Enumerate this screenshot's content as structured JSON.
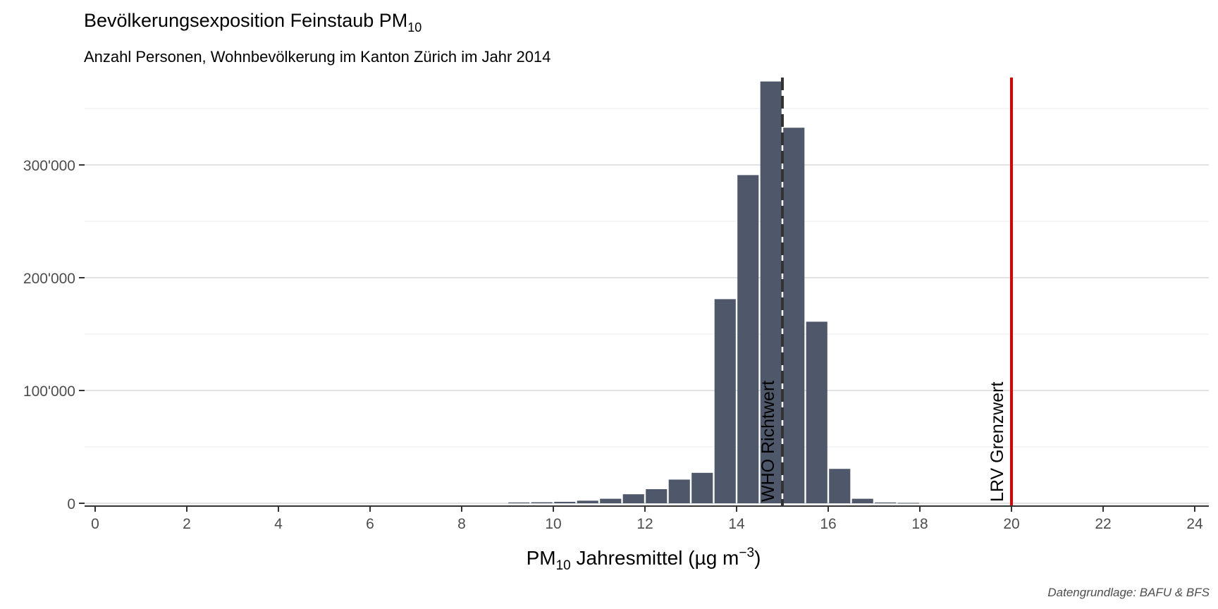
{
  "chart_data": {
    "type": "bar",
    "title": "Bevölkerungsexposition Feinstaub PM",
    "title_subscript": "10",
    "subtitle": "Anzahl Personen, Wohnbevölkerung im Kanton Zürich im Jahr 2014",
    "xlabel_prefix": "PM",
    "xlabel_subscript": "10",
    "xlabel_main": " Jahresmittel (µg m",
    "xlabel_superscript": "−3",
    "xlabel_suffix": ")",
    "ylabel": "",
    "caption": "Datengrundlage: BAFU & BFS",
    "xlim": [
      -0.25,
      24.25
    ],
    "ylim": [
      0,
      375000
    ],
    "x_ticks": [
      0,
      2,
      4,
      6,
      8,
      10,
      12,
      14,
      16,
      18,
      20,
      22,
      24
    ],
    "x_tick_labels": [
      "0",
      "2",
      "4",
      "6",
      "8",
      "10",
      "12",
      "14",
      "16",
      "18",
      "20",
      "22",
      "24"
    ],
    "y_ticks": [
      0,
      100000,
      200000,
      300000
    ],
    "y_tick_labels": [
      "0",
      "100'000",
      "200'000",
      "300'000"
    ],
    "y_minor_ticks": [
      50000,
      150000,
      250000,
      350000
    ],
    "grid": true,
    "bar_color": "#4f586a",
    "bin_width": 0.5,
    "bins": [
      {
        "x": 9.25,
        "value": 700
      },
      {
        "x": 9.75,
        "value": 900
      },
      {
        "x": 10.25,
        "value": 1300
      },
      {
        "x": 10.75,
        "value": 2300
      },
      {
        "x": 11.25,
        "value": 4000
      },
      {
        "x": 11.75,
        "value": 8000
      },
      {
        "x": 12.25,
        "value": 12500
      },
      {
        "x": 12.75,
        "value": 21000
      },
      {
        "x": 13.25,
        "value": 27000
      },
      {
        "x": 13.75,
        "value": 181000
      },
      {
        "x": 14.25,
        "value": 291000
      },
      {
        "x": 14.75,
        "value": 374000
      },
      {
        "x": 15.25,
        "value": 333000
      },
      {
        "x": 15.75,
        "value": 161000
      },
      {
        "x": 16.25,
        "value": 30500
      },
      {
        "x": 16.75,
        "value": 4000
      },
      {
        "x": 17.25,
        "value": 700
      },
      {
        "x": 17.75,
        "value": 300
      }
    ],
    "reference_lines": [
      {
        "x": 15,
        "label": "WHO Richtwert",
        "color": "#333333",
        "style": "dashed"
      },
      {
        "x": 20,
        "label": "LRV Grenzwert",
        "color": "#dd0000",
        "style": "solid"
      }
    ]
  }
}
